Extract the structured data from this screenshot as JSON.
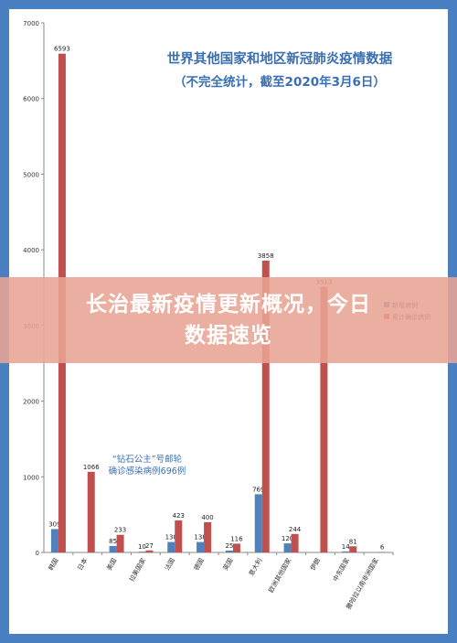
{
  "chart_data": {
    "type": "bar",
    "title": "世界其他国家和地区新冠肺炎疫情数据",
    "subtitle": "（不完全统计，截至2020年3月6日）",
    "ylim": [
      0,
      7000
    ],
    "yticks": [
      0,
      1000,
      2000,
      3000,
      4000,
      5000,
      6000,
      7000
    ],
    "grid": false,
    "legend_position": "right",
    "categories": [
      "韩国",
      "日本",
      "美国",
      "拉美国家",
      "法国",
      "德国",
      "英国",
      "意大利",
      "欧洲其他国家",
      "伊朗",
      "中东国家",
      "撒哈拉以南非洲国家"
    ],
    "series": [
      {
        "name": "新增病例",
        "color": "#4f81bd",
        "values": [
          309,
          0,
          85,
          10,
          138,
          138,
          25,
          769,
          120,
          0,
          14,
          0
        ],
        "labels": [
          "309",
          "",
          "85",
          "10",
          "138",
          "138",
          "25",
          "769",
          "120",
          "",
          "14",
          ""
        ]
      },
      {
        "name": "累计确诊病例",
        "color": "#c0504d",
        "values": [
          6593,
          1066,
          233,
          27,
          423,
          400,
          116,
          3858,
          244,
          3513,
          81,
          6
        ],
        "labels": [
          "6593",
          "1066",
          "233",
          "27",
          "423",
          "400",
          "116",
          "3858",
          "244",
          "3513",
          "81",
          "6"
        ]
      }
    ],
    "annotations": [
      "“钻石公主”号邮轮",
      "确诊感染病例696例"
    ]
  },
  "overlay": {
    "line1": "长治最新疫情更新概况，今日",
    "line2": "数据速览"
  }
}
